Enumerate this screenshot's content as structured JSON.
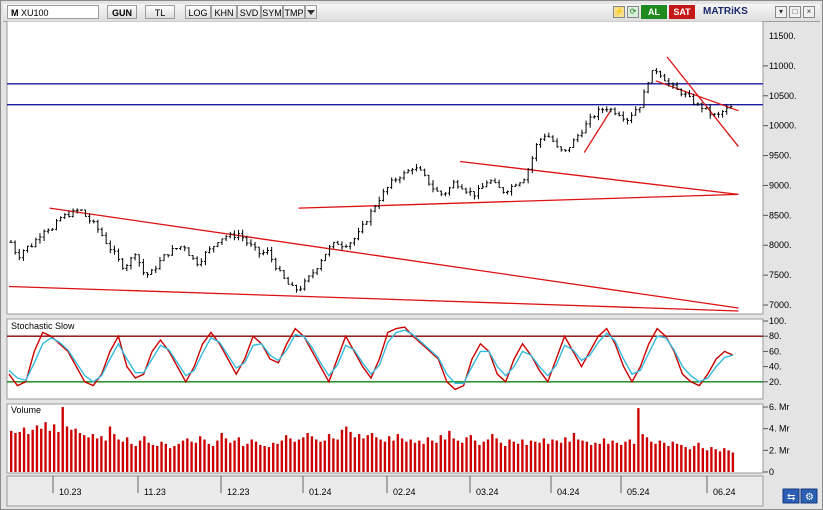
{
  "toolbar": {
    "mode": "M",
    "symbol": "XU100",
    "buttons": [
      "GUN",
      "TL",
      "LOG",
      "KHN",
      "SVD",
      "SYM",
      "TMP"
    ],
    "buy_label": "AL",
    "sell_label": "SAT",
    "brand": "MATRiKS"
  },
  "panels": {
    "stochastic_title": "Stochastic Slow",
    "volume_title": "Volume"
  },
  "chart_data": [
    {
      "type": "line",
      "title": "",
      "series_style": "bar-ohlc",
      "yticks": [
        11000,
        10500,
        10000,
        9500,
        9000,
        8500,
        8000,
        7500,
        7000
      ],
      "ytick_labels": [
        "11000.",
        "10500.",
        "10000.",
        "9500.",
        "9000.",
        "8500.",
        "8000.",
        "7500.",
        "7000."
      ],
      "upper_partial_tick": "11500.",
      "ylim": [
        6900,
        11700
      ],
      "xticks": [
        "10.23",
        "11.23",
        "12.23",
        "01.24",
        "02.24",
        "03.24",
        "04.24",
        "05.24",
        "06.24"
      ],
      "price_points": [
        8050,
        7800,
        7950,
        8000,
        8150,
        8300,
        8250,
        8450,
        8500,
        8550,
        8600,
        8450,
        8350,
        8200,
        8000,
        7850,
        7650,
        7700,
        7900,
        7550,
        7500,
        7650,
        7800,
        7900,
        7950,
        8000,
        7800,
        7700,
        7850,
        7950,
        8100,
        8150,
        8150,
        8200,
        8050,
        7950,
        7850,
        7900,
        7700,
        7500,
        7350,
        7250,
        7300,
        7450,
        7600,
        7800,
        7950,
        8050,
        8000,
        8050,
        8150,
        8350,
        8550,
        8750,
        8900,
        9050,
        9150,
        9200,
        9300,
        9250,
        9100,
        8950,
        8850,
        8900,
        9050,
        9000,
        8900,
        8850,
        8950,
        9100,
        9000,
        8900,
        8950,
        9050,
        9100,
        9350,
        9700,
        9850,
        9800,
        9600,
        9550,
        9700,
        9850,
        10000,
        10150,
        10250,
        10300,
        10250,
        10200,
        10100,
        10250,
        10350,
        10750,
        10950,
        10850,
        10700,
        10600,
        10550,
        10450,
        10350,
        10300,
        10200,
        10150,
        10250,
        10300
      ],
      "support_resistance": [
        10700,
        10350
      ],
      "trendlines": [
        {
          "from": [
            0.054,
            8620
          ],
          "to": [
            0.97,
            6950
          ]
        },
        {
          "from": [
            0.0,
            7310
          ],
          "to": [
            0.97,
            6900
          ]
        },
        {
          "from": [
            0.385,
            8620
          ],
          "to": [
            0.97,
            8850
          ]
        },
        {
          "from": [
            0.6,
            9400
          ],
          "to": [
            0.97,
            8850
          ]
        },
        {
          "from": [
            0.765,
            9550
          ],
          "to": [
            0.8,
            10250
          ]
        },
        {
          "from": [
            0.875,
            11150
          ],
          "to": [
            0.97,
            9650
          ]
        },
        {
          "from": [
            0.86,
            10750
          ],
          "to": [
            0.97,
            10250
          ]
        }
      ]
    },
    {
      "type": "line",
      "title": "Stochastic Slow",
      "yticks": [
        100,
        80,
        60,
        40,
        20
      ],
      "ytick_labels": [
        "100.",
        "80.",
        "60.",
        "40.",
        "20."
      ],
      "ylim": [
        0,
        100
      ],
      "levels": [
        80,
        20
      ],
      "series": [
        {
          "name": "%K",
          "color": "#cc0000",
          "values": [
            30,
            15,
            20,
            60,
            85,
            80,
            70,
            60,
            40,
            20,
            15,
            30,
            60,
            80,
            40,
            25,
            30,
            60,
            75,
            60,
            40,
            20,
            40,
            70,
            85,
            70,
            50,
            30,
            50,
            80,
            70,
            50,
            45,
            70,
            90,
            80,
            60,
            40,
            20,
            50,
            80,
            60,
            40,
            25,
            50,
            85,
            90,
            92,
            80,
            70,
            60,
            50,
            20,
            10,
            15,
            50,
            70,
            60,
            30,
            20,
            50,
            70,
            55,
            35,
            20,
            50,
            80,
            60,
            40,
            60,
            80,
            90,
            70,
            40,
            20,
            40,
            70,
            90,
            80,
            60,
            30,
            20,
            15,
            30,
            50,
            60,
            55
          ]
        },
        {
          "name": "%D",
          "color": "#33bbdd",
          "values": [
            35,
            25,
            22,
            45,
            70,
            78,
            72,
            62,
            45,
            28,
            20,
            28,
            50,
            70,
            50,
            32,
            32,
            50,
            68,
            62,
            45,
            28,
            35,
            58,
            78,
            72,
            55,
            38,
            45,
            68,
            70,
            55,
            48,
            62,
            82,
            80,
            65,
            45,
            28,
            42,
            68,
            62,
            45,
            30,
            42,
            72,
            85,
            88,
            82,
            72,
            62,
            52,
            30,
            18,
            18,
            40,
            60,
            60,
            40,
            28,
            40,
            60,
            55,
            40,
            28,
            42,
            68,
            62,
            48,
            55,
            72,
            84,
            74,
            50,
            30,
            35,
            58,
            80,
            78,
            62,
            40,
            28,
            20,
            25,
            40,
            52,
            55
          ]
        }
      ]
    },
    {
      "type": "bar",
      "title": "Volume",
      "yticks": [
        6,
        4,
        2,
        0
      ],
      "ytick_labels": [
        "6. Mr",
        "4. Mr",
        "2. Mr",
        "0"
      ],
      "ylim": [
        0,
        6
      ],
      "values": [
        3.8,
        3.6,
        3.7,
        4.1,
        3.5,
        3.9,
        4.3,
        4.0,
        4.6,
        3.8,
        4.4,
        3.7,
        6.0,
        4.2,
        3.9,
        4.0,
        3.6,
        3.4,
        3.2,
        3.5,
        3.1,
        3.3,
        2.9,
        4.2,
        3.5,
        3.0,
        2.8,
        3.2,
        2.6,
        2.4,
        2.9,
        3.3,
        2.7,
        2.5,
        2.4,
        2.8,
        2.6,
        2.2,
        2.4,
        2.6,
        2.9,
        3.1,
        2.8,
        2.7,
        3.3,
        3.0,
        2.6,
        2.4,
        2.9,
        3.6,
        3.1,
        2.7,
        2.9,
        3.2,
        2.4,
        2.6,
        3.0,
        2.8,
        2.5,
        2.4,
        2.3,
        2.7,
        2.6,
        2.9,
        3.4,
        3.1,
        2.8,
        3.0,
        3.2,
        3.6,
        3.3,
        3.0,
        2.8,
        2.9,
        3.5,
        3.1,
        3.0,
        3.9,
        4.2,
        3.7,
        3.2,
        3.5,
        3.1,
        3.4,
        3.6,
        3.2,
        3.0,
        2.8,
        3.3,
        2.9,
        3.5,
        3.1,
        2.8,
        3.0,
        2.7,
        2.9,
        2.6,
        3.2,
        2.9,
        2.7,
        3.4,
        3.0,
        3.8,
        3.1,
        2.9,
        2.7,
        3.2,
        3.4,
        2.9,
        2.5,
        2.8,
        3.0,
        3.5,
        3.1,
        2.7,
        2.4,
        3.0,
        2.8,
        2.6,
        3.0,
        2.5,
        2.9,
        2.8,
        2.7,
        3.1,
        2.6,
        3.0,
        2.9,
        2.7,
        3.2,
        2.8,
        3.6,
        3.0,
        2.9,
        2.8,
        2.5,
        2.7,
        2.6,
        3.1,
        2.6,
        2.9,
        2.7,
        2.5,
        2.8,
        3.0,
        2.6,
        5.9,
        3.5,
        3.2,
        2.8,
        2.6,
        2.9,
        2.7,
        2.4,
        2.8,
        2.6,
        2.5,
        2.3,
        2.1,
        2.4,
        2.7,
        2.2,
        2.0,
        2.3,
        2.1,
        1.9,
        2.2,
        2.0,
        1.8
      ]
    }
  ]
}
